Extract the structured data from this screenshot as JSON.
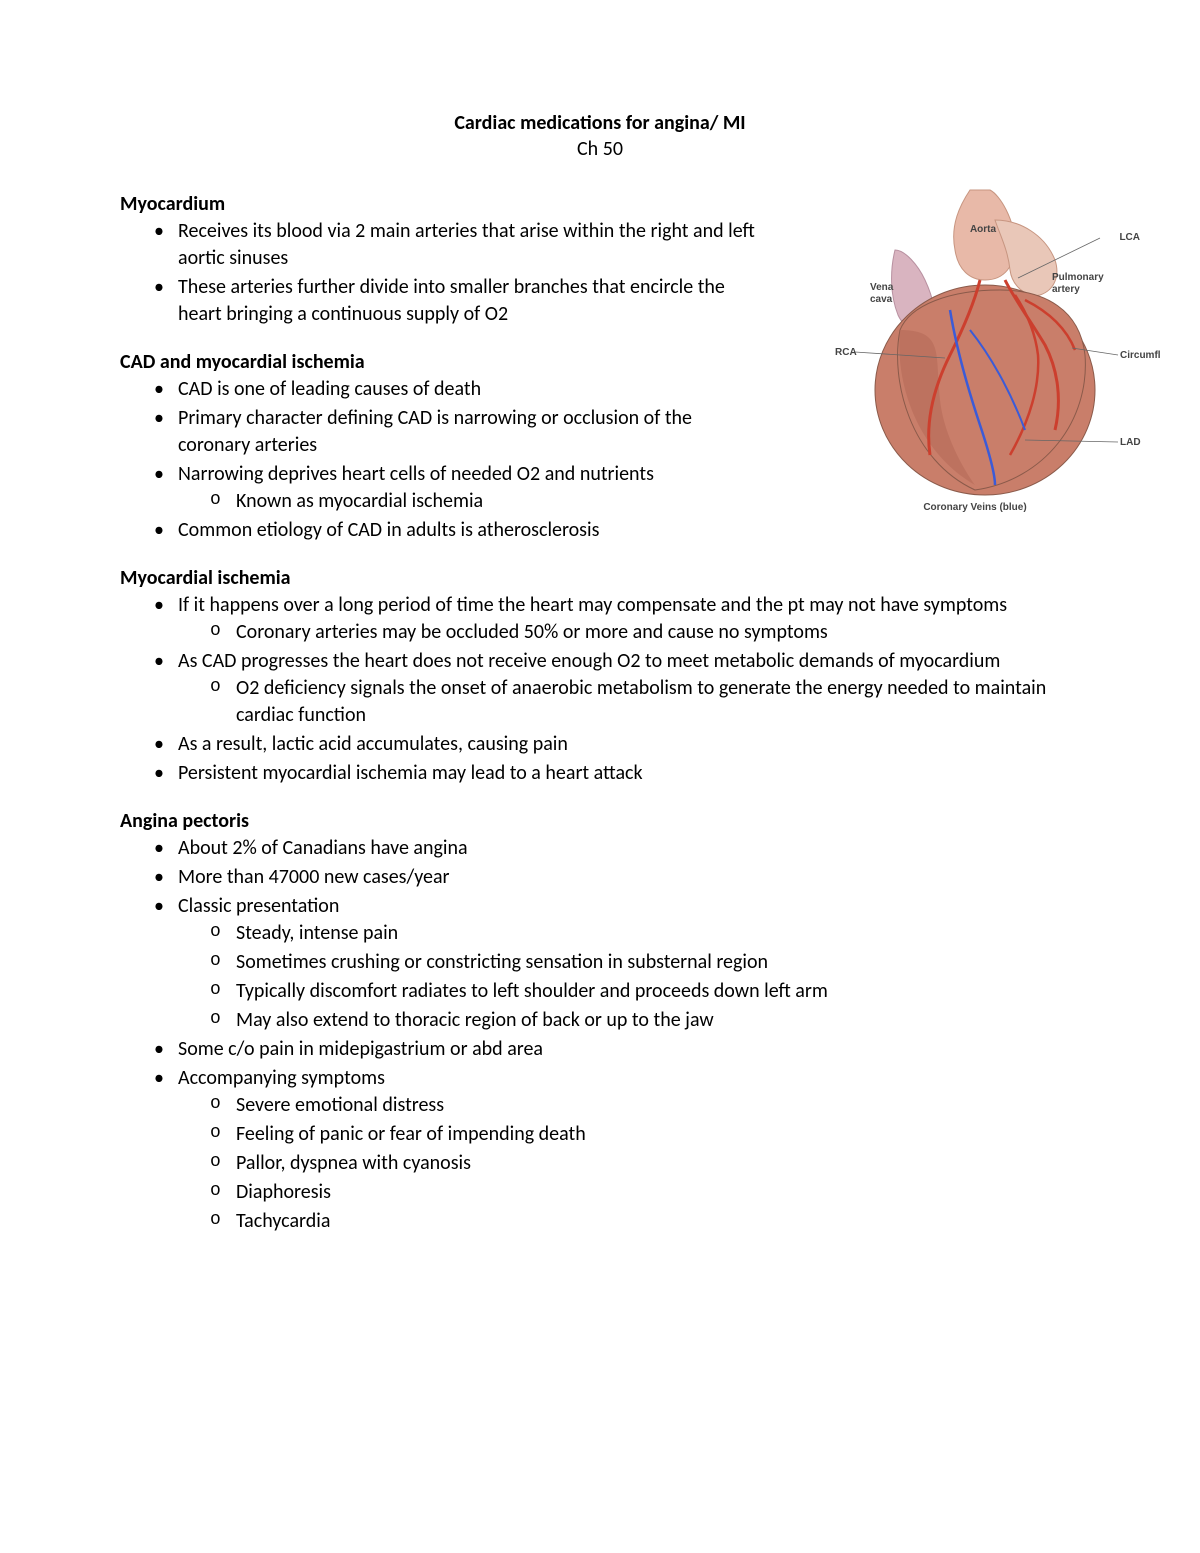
{
  "title": "Cardiac medications for angina/ MI",
  "subtitle": "Ch 50",
  "sections": [
    {
      "heading": "Myocardium",
      "wrap": true,
      "items": [
        {
          "text": "Receives its blood via 2 main arteries that arise within the right and left aortic sinuses"
        },
        {
          "text": "These arteries further divide into smaller branches that encircle the heart bringing a continuous supply of O2"
        }
      ]
    },
    {
      "heading": "CAD and myocardial ischemia",
      "wrap": true,
      "items": [
        {
          "text": "CAD is one of leading causes of death"
        },
        {
          "text": "Primary character defining CAD is narrowing or occlusion of the coronary arteries"
        },
        {
          "text": "Narrowing deprives heart cells of needed O2 and nutrients",
          "sub": [
            "Known as myocardial ischemia"
          ]
        },
        {
          "text": "Common etiology of CAD in adults is atherosclerosis"
        }
      ]
    },
    {
      "heading": "Myocardial ischemia",
      "wrap": false,
      "items": [
        {
          "text": "If it happens over a long period of time the heart may compensate and the pt may not have symptoms",
          "sub": [
            "Coronary arteries may be occluded 50% or more and cause no symptoms"
          ]
        },
        {
          "text": "As CAD progresses the heart does not receive enough O2 to meet metabolic demands of myocardium",
          "sub": [
            "O2 deficiency signals the onset of anaerobic metabolism to generate the energy needed to maintain cardiac function"
          ]
        },
        {
          "text": "As a result, lactic acid accumulates, causing pain"
        },
        {
          "text": "Persistent myocardial ischemia may lead to a heart attack"
        }
      ]
    },
    {
      "heading": "Angina pectoris",
      "wrap": false,
      "items": [
        {
          "text": "About 2% of Canadians have angina"
        },
        {
          "text": "More than 47000 new cases/year"
        },
        {
          "text": "Classic presentation",
          "sub": [
            "Steady, intense pain",
            "Sometimes crushing or constricting sensation in substernal region",
            "Typically discomfort radiates to left shoulder and proceeds down left arm",
            "May also extend to thoracic region of back or up to the jaw"
          ]
        },
        {
          "text": "Some c/o pain in midepigastrium or abd area"
        },
        {
          "text": "Accompanying symptoms",
          "sub": [
            "Severe emotional distress",
            "Feeling of panic or fear of impending death",
            "Pallor, dyspnea with cyanosis",
            "Diaphoresis",
            "Tachycardia"
          ]
        }
      ]
    }
  ],
  "figure": {
    "labels": {
      "aorta": "Aorta",
      "lca": "LCA",
      "pulmonary": "Pulmonary artery",
      "vena": "Vena cava",
      "rca": "RCA",
      "circumflex": "Circumflex",
      "lad": "LAD",
      "veins": "Coronary Veins (blue)"
    },
    "colors": {
      "heart_fill": "#e8b9a8",
      "heart_shade": "#d79c88",
      "muscle": "#c97e6a",
      "muscle_dark": "#b56a58",
      "artery": "#cc3f2e",
      "vein": "#3b5bd8",
      "vessel_light": "#e9c7b8",
      "outline": "#8a5a4a"
    }
  }
}
